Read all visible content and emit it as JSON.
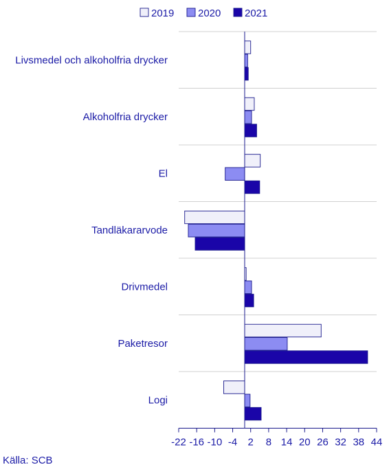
{
  "chart_data": {
    "type": "bar",
    "orientation": "horizontal",
    "categories": [
      "Livsmedel och alkoholfria drycker",
      "Alkoholfria drycker",
      "El",
      "Tandläkararvode",
      "Drivmedel",
      "Paketresor",
      "Logi"
    ],
    "series": [
      {
        "name": "2019",
        "values": [
          2.0,
          3.2,
          5.2,
          -20.0,
          0.5,
          25.5,
          -7.0
        ]
      },
      {
        "name": "2020",
        "values": [
          1.0,
          2.3,
          -6.5,
          -18.8,
          2.3,
          14.2,
          1.8
        ]
      },
      {
        "name": "2021",
        "values": [
          1.2,
          4.0,
          5.0,
          -16.5,
          3.0,
          41.0,
          5.5
        ]
      }
    ],
    "xlim": [
      -22,
      44
    ],
    "xticks": [
      -22,
      -16,
      -10,
      -4,
      2,
      8,
      14,
      20,
      26,
      32,
      38,
      44
    ],
    "legend_position": "top",
    "grid": "horizontal separators between categories",
    "colors": {
      "2019": "#f0f0fa",
      "2020": "#8c8cf2",
      "2021": "#1a05a8",
      "outline": "#1a1a8c",
      "text": "#1a1aa6",
      "axis": "#1a1a8c",
      "grid": "#d0d0d0"
    },
    "source": "Källa: SCB"
  }
}
